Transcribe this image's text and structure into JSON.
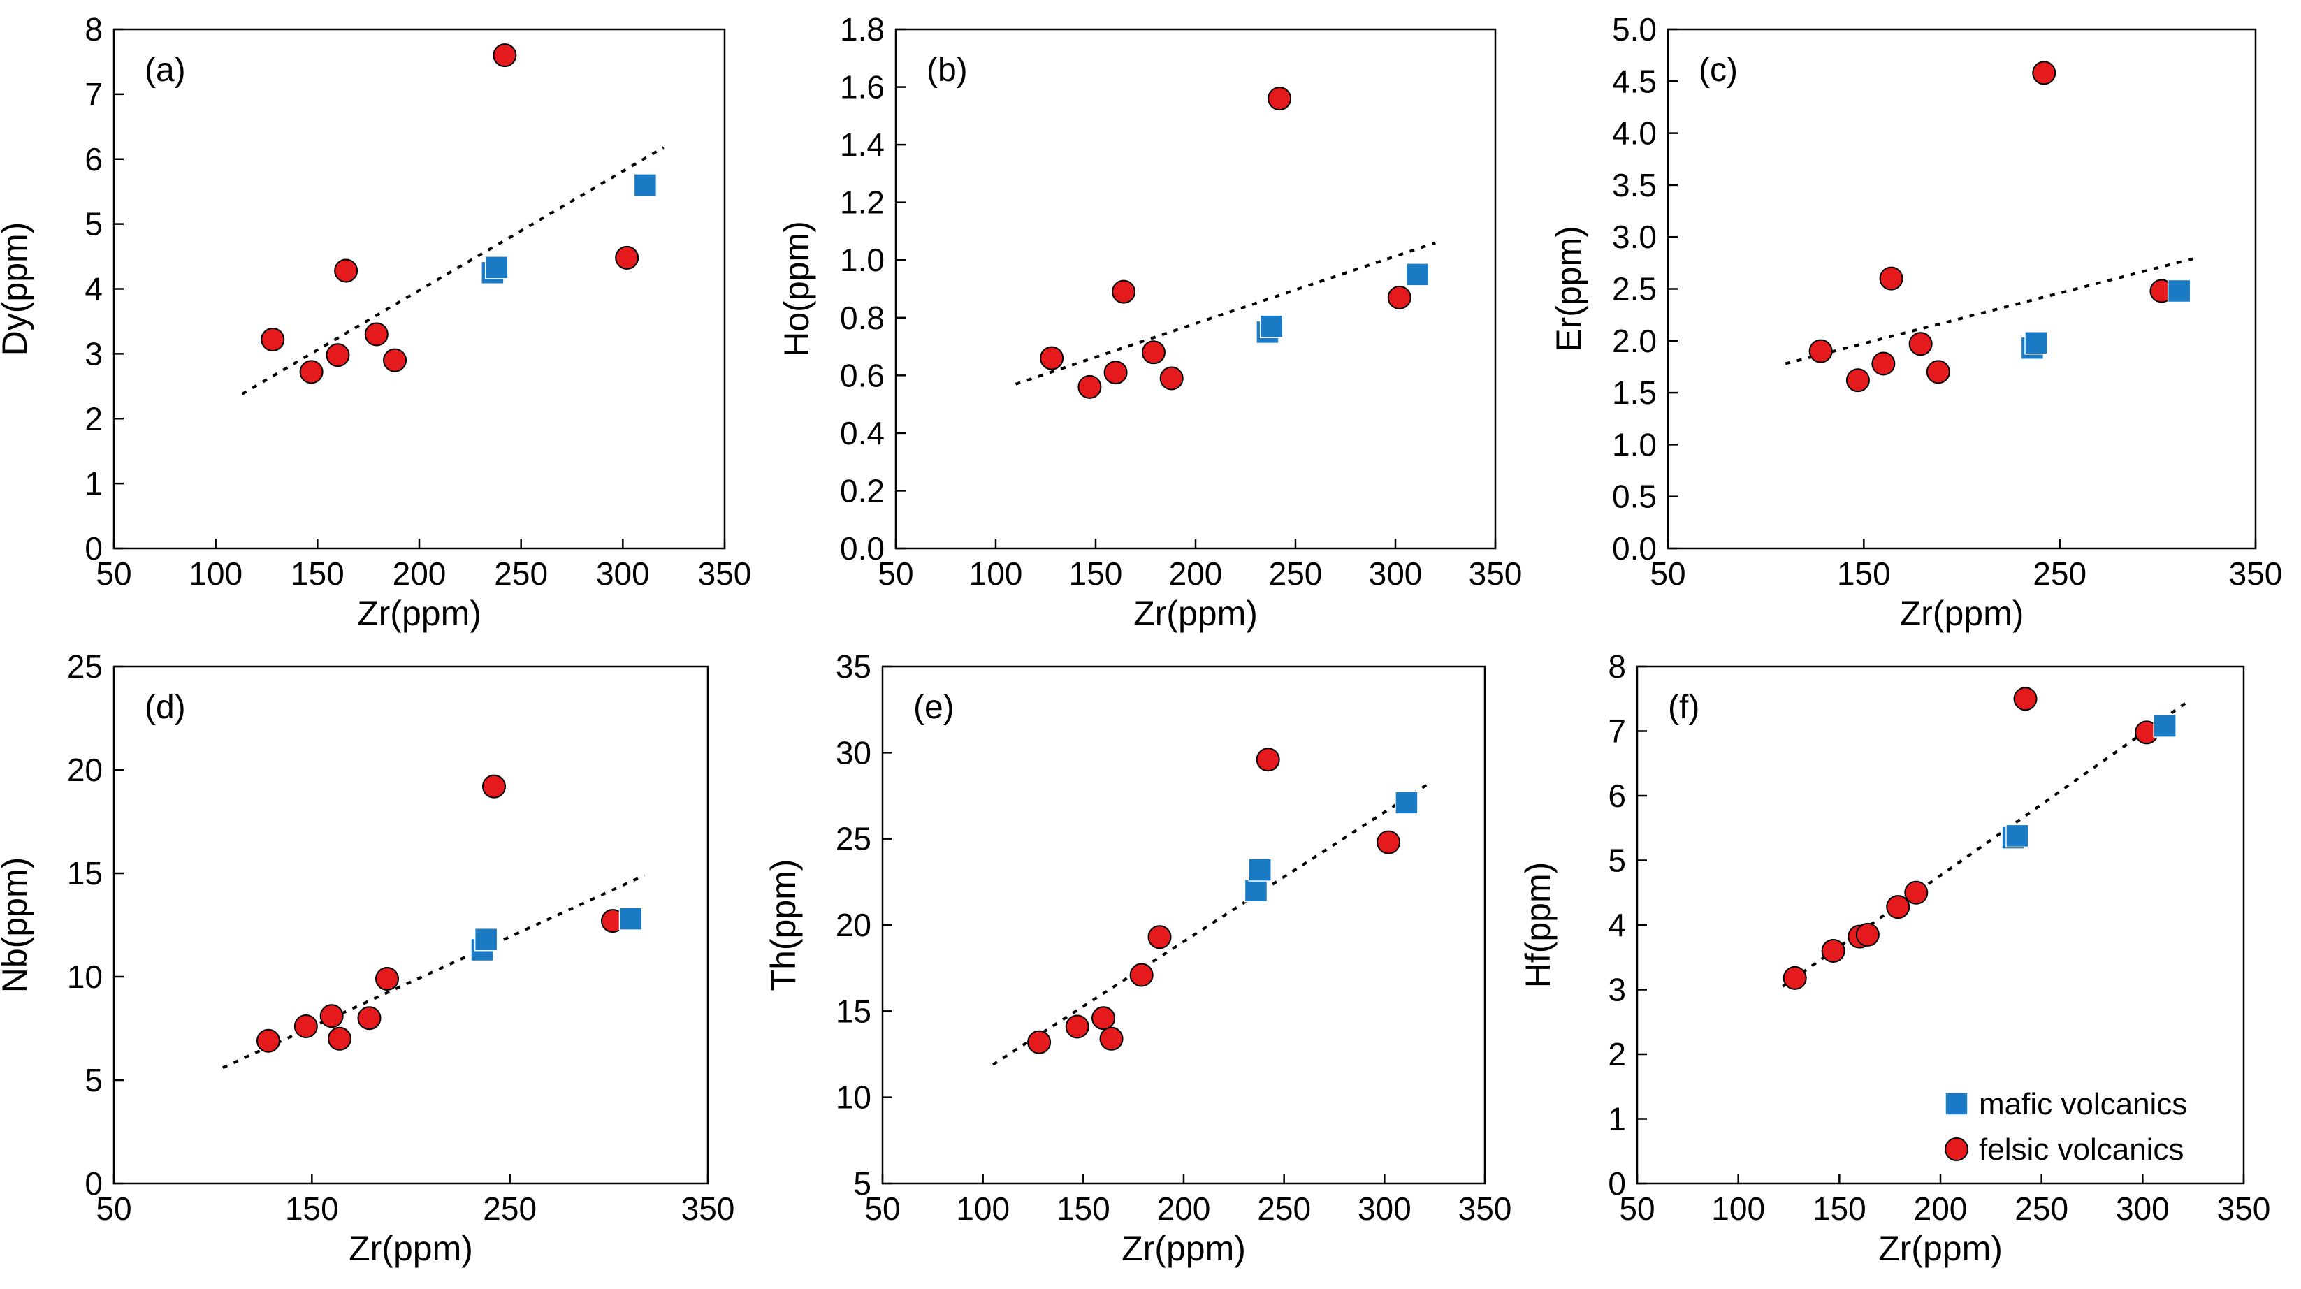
{
  "figure": {
    "legend": [
      {
        "label": "mafic volcanics",
        "marker": "square",
        "color": "#1a7bc4"
      },
      {
        "label": "felsic volcanics",
        "marker": "circle",
        "color": "#e41a1c"
      }
    ]
  },
  "chart_data": [
    {
      "type": "scatter",
      "tag": "(a)",
      "xlabel": "Zr(ppm)",
      "ylabel": "Dy(ppm)",
      "xlim": [
        50,
        350
      ],
      "ylim": [
        0,
        8
      ],
      "xticks": [
        "50",
        "100",
        "150",
        "200",
        "250",
        "300",
        "350"
      ],
      "yticks": [
        "0",
        "1",
        "2",
        "3",
        "4",
        "5",
        "6",
        "7",
        "8"
      ],
      "series": [
        {
          "name": "felsic volcanics",
          "x": [
            128,
            147,
            160,
            164,
            179,
            188,
            242,
            302
          ],
          "y": [
            3.22,
            2.72,
            2.98,
            4.28,
            3.3,
            2.9,
            7.6,
            4.48
          ]
        },
        {
          "name": "mafic volcanics",
          "x": [
            236,
            238,
            311
          ],
          "y": [
            4.25,
            4.33,
            5.6
          ]
        }
      ],
      "trendline": {
        "x": [
          113,
          320
        ],
        "y": [
          2.38,
          6.18
        ]
      }
    },
    {
      "type": "scatter",
      "tag": "(b)",
      "xlabel": "Zr(ppm)",
      "ylabel": "Ho(ppm)",
      "xlim": [
        50,
        350
      ],
      "ylim": [
        0,
        1.8
      ],
      "xticks": [
        "50",
        "100",
        "150",
        "200",
        "250",
        "300",
        "350"
      ],
      "yticks": [
        "0.0",
        "0.2",
        "0.4",
        "0.6",
        "0.8",
        "1.0",
        "1.2",
        "1.4",
        "1.6",
        "1.8"
      ],
      "series": [
        {
          "name": "felsic volcanics",
          "x": [
            128,
            147,
            160,
            164,
            179,
            188,
            242,
            302
          ],
          "y": [
            0.66,
            0.56,
            0.61,
            0.89,
            0.68,
            0.59,
            1.56,
            0.87
          ]
        },
        {
          "name": "mafic volcanics",
          "x": [
            236,
            238,
            311
          ],
          "y": [
            0.75,
            0.77,
            0.95
          ]
        }
      ],
      "trendline": {
        "x": [
          110,
          320
        ],
        "y": [
          0.57,
          1.06
        ]
      }
    },
    {
      "type": "scatter",
      "tag": "(c)",
      "xlabel": "Zr(ppm)",
      "ylabel": "Er(ppm)",
      "xlim": [
        50,
        350
      ],
      "ylim": [
        0,
        5.0
      ],
      "xticks": [
        "50",
        "150",
        "250",
        "350"
      ],
      "yticks": [
        "0.0",
        "0.5",
        "1.0",
        "1.5",
        "2.0",
        "2.5",
        "3.0",
        "3.5",
        "4.0",
        "4.5",
        "5.0"
      ],
      "series": [
        {
          "name": "felsic volcanics",
          "x": [
            128,
            147,
            160,
            164,
            179,
            188,
            242,
            302
          ],
          "y": [
            1.9,
            1.62,
            1.78,
            2.6,
            1.97,
            1.7,
            4.58,
            2.48
          ]
        },
        {
          "name": "mafic volcanics",
          "x": [
            236,
            238,
            311
          ],
          "y": [
            1.93,
            1.98,
            2.48
          ]
        }
      ],
      "trendline": {
        "x": [
          110,
          320
        ],
        "y": [
          1.78,
          2.8
        ]
      }
    },
    {
      "type": "scatter",
      "tag": "(d)",
      "xlabel": "Zr(ppm)",
      "ylabel": "Nb(ppm)",
      "xlim": [
        50,
        350
      ],
      "ylim": [
        0,
        25
      ],
      "xticks": [
        "50",
        "150",
        "250",
        "350"
      ],
      "yticks": [
        "0",
        "5",
        "10",
        "15",
        "20",
        "25"
      ],
      "series": [
        {
          "name": "felsic volcanics",
          "x": [
            128,
            147,
            160,
            164,
            179,
            188,
            242,
            302
          ],
          "y": [
            6.9,
            7.6,
            8.1,
            7.0,
            8.0,
            9.9,
            19.2,
            12.7
          ]
        },
        {
          "name": "mafic volcanics",
          "x": [
            236,
            238,
            311
          ],
          "y": [
            11.3,
            11.8,
            12.8
          ]
        }
      ],
      "trendline": {
        "x": [
          105,
          318
        ],
        "y": [
          5.6,
          14.9
        ]
      }
    },
    {
      "type": "scatter",
      "tag": "(e)",
      "xlabel": "Zr(ppm)",
      "ylabel": "Th(ppm)",
      "xlim": [
        50,
        350
      ],
      "ylim": [
        5,
        35
      ],
      "xticks": [
        "50",
        "100",
        "150",
        "200",
        "250",
        "300",
        "350"
      ],
      "yticks": [
        "5",
        "10",
        "15",
        "20",
        "25",
        "30",
        "35"
      ],
      "series": [
        {
          "name": "felsic volcanics",
          "x": [
            128,
            147,
            160,
            164,
            179,
            188,
            242,
            302
          ],
          "y": [
            13.2,
            14.1,
            14.6,
            13.4,
            17.1,
            19.3,
            29.6,
            24.8
          ]
        },
        {
          "name": "mafic volcanics",
          "x": [
            236,
            238,
            311
          ],
          "y": [
            22.0,
            23.2,
            27.1
          ]
        }
      ],
      "trendline": {
        "x": [
          105,
          322
        ],
        "y": [
          11.9,
          28.2
        ]
      }
    },
    {
      "type": "scatter",
      "tag": "(f)",
      "xlabel": "Zr(ppm)",
      "ylabel": "Hf(ppm)",
      "xlim": [
        50,
        350
      ],
      "ylim": [
        0,
        8
      ],
      "xticks": [
        "50",
        "100",
        "150",
        "200",
        "250",
        "300",
        "350"
      ],
      "yticks": [
        "0",
        "1",
        "2",
        "3",
        "4",
        "5",
        "6",
        "7",
        "8"
      ],
      "series": [
        {
          "name": "felsic volcanics",
          "x": [
            128,
            147,
            160,
            164,
            179,
            188,
            242,
            302
          ],
          "y": [
            3.18,
            3.6,
            3.82,
            3.85,
            4.28,
            4.5,
            7.5,
            6.98
          ]
        },
        {
          "name": "mafic volcanics",
          "x": [
            236,
            238,
            311
          ],
          "y": [
            5.35,
            5.38,
            7.08
          ]
        }
      ],
      "trendline": {
        "x": [
          122,
          322
        ],
        "y": [
          3.05,
          7.45
        ]
      }
    }
  ]
}
